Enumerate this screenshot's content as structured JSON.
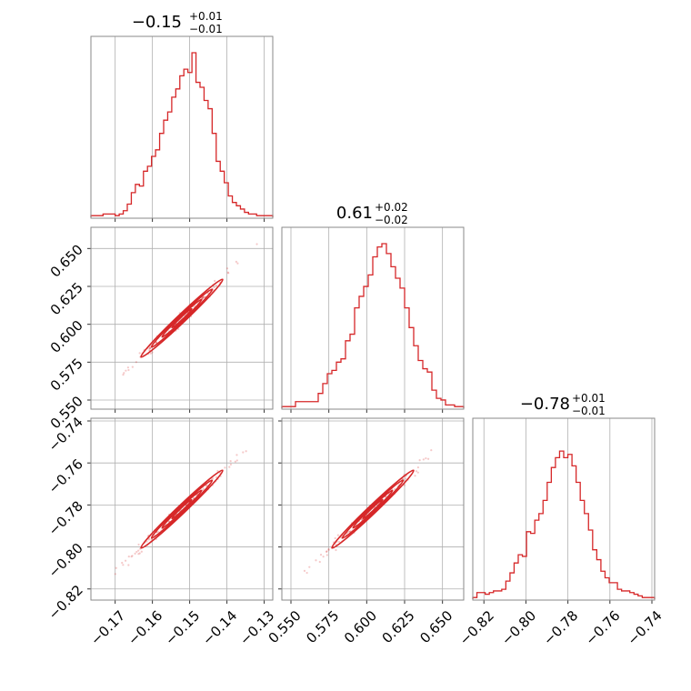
{
  "chart_data": {
    "type": "corner",
    "color": "#d62728",
    "grid": true,
    "parameters": [
      {
        "title": {
          "median": "−0.15",
          "plus": "+0.01",
          "minus": "−0.01"
        },
        "range": [
          -0.1765,
          -0.1277
        ],
        "ticks": [
          -0.17,
          -0.16,
          -0.15,
          -0.14,
          -0.13
        ],
        "tick_labels": [
          "−0.17",
          "−0.16",
          "−0.15",
          "−0.14",
          "−0.13"
        ],
        "hist": [
          0.01,
          0.01,
          0.01,
          0.02,
          0.02,
          0.02,
          0.01,
          0.02,
          0.04,
          0.08,
          0.15,
          0.2,
          0.19,
          0.28,
          0.31,
          0.37,
          0.41,
          0.51,
          0.59,
          0.64,
          0.73,
          0.78,
          0.86,
          0.9,
          0.88,
          1.0,
          0.82,
          0.79,
          0.71,
          0.66,
          0.51,
          0.34,
          0.28,
          0.21,
          0.13,
          0.09,
          0.07,
          0.05,
          0.03,
          0.02,
          0.02,
          0.01,
          0.01,
          0.01,
          0.01
        ]
      },
      {
        "title": {
          "median": "0.61",
          "plus": "+0.02",
          "minus": "−0.02"
        },
        "range": [
          0.544,
          0.664
        ],
        "ticks": [
          0.55,
          0.575,
          0.6,
          0.625,
          0.65
        ],
        "tick_labels": [
          "0.550",
          "0.575",
          "0.600",
          "0.625",
          "0.650"
        ],
        "hist": [
          0.01,
          0.01,
          0.01,
          0.04,
          0.04,
          0.04,
          0.04,
          0.04,
          0.09,
          0.15,
          0.21,
          0.23,
          0.28,
          0.3,
          0.41,
          0.45,
          0.61,
          0.68,
          0.74,
          0.81,
          0.92,
          0.98,
          1.0,
          0.94,
          0.86,
          0.79,
          0.73,
          0.61,
          0.49,
          0.38,
          0.29,
          0.24,
          0.22,
          0.11,
          0.06,
          0.05,
          0.02,
          0.02,
          0.01,
          0.01
        ]
      },
      {
        "title": {
          "median": "−0.78",
          "plus": "+0.01",
          "minus": "−0.01"
        },
        "range": [
          -0.8253,
          -0.7387
        ],
        "ticks": [
          -0.82,
          -0.8,
          -0.78,
          -0.76,
          -0.74
        ],
        "tick_labels": [
          "−0.82",
          "−0.80",
          "−0.78",
          "−0.76",
          "−0.74"
        ],
        "hist": [
          0.01,
          0.04,
          0.04,
          0.03,
          0.04,
          0.05,
          0.05,
          0.06,
          0.11,
          0.16,
          0.22,
          0.27,
          0.26,
          0.41,
          0.4,
          0.48,
          0.52,
          0.6,
          0.71,
          0.8,
          0.86,
          0.9,
          0.86,
          0.88,
          0.81,
          0.71,
          0.6,
          0.52,
          0.42,
          0.3,
          0.24,
          0.17,
          0.13,
          0.1,
          0.1,
          0.06,
          0.05,
          0.05,
          0.04,
          0.03,
          0.02,
          0.01,
          0.01,
          0.01
        ]
      }
    ],
    "pairs": [
      {
        "x": 0,
        "y": 1,
        "x_range": [
          -0.1765,
          -0.1277
        ],
        "y_range": [
          0.544,
          0.664
        ]
      },
      {
        "x": 0,
        "y": 2,
        "x_range": [
          -0.1765,
          -0.1277
        ],
        "y_range": [
          -0.8253,
          -0.7387
        ]
      },
      {
        "x": 1,
        "y": 2,
        "x_range": [
          0.544,
          0.664
        ],
        "y_range": [
          -0.8253,
          -0.7387
        ]
      }
    ]
  }
}
